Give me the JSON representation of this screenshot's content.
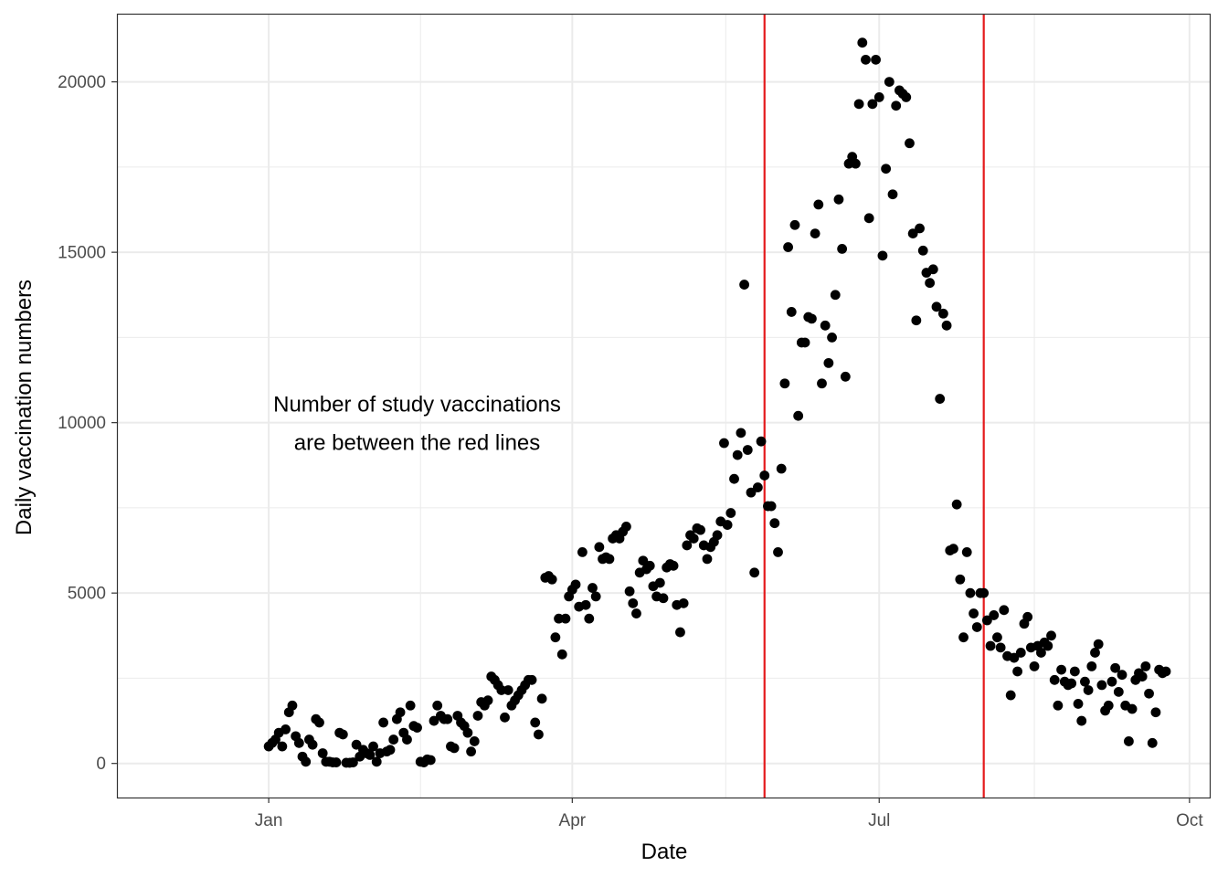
{
  "chart_data": {
    "type": "scatter",
    "xlabel": "Date",
    "ylabel": "Daily vaccination numbers",
    "x_ticks": [
      {
        "date": "2021-01-01",
        "label": "Jan"
      },
      {
        "date": "2021-04-01",
        "label": "Apr"
      },
      {
        "date": "2021-07-01",
        "label": "Jul"
      },
      {
        "date": "2021-10-01",
        "label": "Oct"
      }
    ],
    "y_ticks": [
      0,
      5000,
      10000,
      15000,
      20000
    ],
    "xlim": [
      "2020-11-17",
      "2021-10-07"
    ],
    "ylim": [
      -1000,
      22000
    ],
    "grid": true,
    "marker_color": "#000000",
    "vlines": [
      {
        "date": "2021-05-28",
        "color": "#e41a1c"
      },
      {
        "date": "2021-08-01",
        "color": "#e41a1c"
      }
    ],
    "annotation": {
      "lines": [
        "Number of study vaccinations",
        "are between the red lines"
      ],
      "date": "2021-02-14",
      "y": 10000
    },
    "points": [
      [
        "2021-01-01",
        500
      ],
      [
        "2021-01-02",
        600
      ],
      [
        "2021-01-03",
        700
      ],
      [
        "2021-01-04",
        900
      ],
      [
        "2021-01-05",
        500
      ],
      [
        "2021-01-06",
        1000
      ],
      [
        "2021-01-07",
        1500
      ],
      [
        "2021-01-08",
        1700
      ],
      [
        "2021-01-09",
        800
      ],
      [
        "2021-01-10",
        600
      ],
      [
        "2021-01-11",
        200
      ],
      [
        "2021-01-12",
        50
      ],
      [
        "2021-01-13",
        700
      ],
      [
        "2021-01-14",
        550
      ],
      [
        "2021-01-15",
        1300
      ],
      [
        "2021-01-16",
        1200
      ],
      [
        "2021-01-17",
        300
      ],
      [
        "2021-01-18",
        50
      ],
      [
        "2021-01-19",
        50
      ],
      [
        "2021-01-20",
        30
      ],
      [
        "2021-01-21",
        30
      ],
      [
        "2021-01-22",
        900
      ],
      [
        "2021-01-23",
        850
      ],
      [
        "2021-01-24",
        20
      ],
      [
        "2021-01-25",
        20
      ],
      [
        "2021-01-26",
        30
      ],
      [
        "2021-01-27",
        550
      ],
      [
        "2021-01-28",
        200
      ],
      [
        "2021-01-29",
        400
      ],
      [
        "2021-01-30",
        300
      ],
      [
        "2021-01-31",
        250
      ],
      [
        "2021-02-01",
        500
      ],
      [
        "2021-02-02",
        50
      ],
      [
        "2021-02-03",
        300
      ],
      [
        "2021-02-04",
        1200
      ],
      [
        "2021-02-05",
        350
      ],
      [
        "2021-02-06",
        400
      ],
      [
        "2021-02-07",
        700
      ],
      [
        "2021-02-08",
        1300
      ],
      [
        "2021-02-09",
        1500
      ],
      [
        "2021-02-10",
        900
      ],
      [
        "2021-02-11",
        700
      ],
      [
        "2021-02-12",
        1700
      ],
      [
        "2021-02-13",
        1100
      ],
      [
        "2021-02-14",
        1050
      ],
      [
        "2021-02-15",
        50
      ],
      [
        "2021-02-16",
        30
      ],
      [
        "2021-02-17",
        120
      ],
      [
        "2021-02-18",
        100
      ],
      [
        "2021-02-19",
        1250
      ],
      [
        "2021-02-20",
        1700
      ],
      [
        "2021-02-21",
        1400
      ],
      [
        "2021-02-22",
        1300
      ],
      [
        "2021-02-23",
        1300
      ],
      [
        "2021-02-24",
        500
      ],
      [
        "2021-02-25",
        450
      ],
      [
        "2021-02-26",
        1400
      ],
      [
        "2021-02-27",
        1200
      ],
      [
        "2021-02-28",
        1100
      ],
      [
        "2021-03-01",
        900
      ],
      [
        "2021-03-02",
        350
      ],
      [
        "2021-03-03",
        650
      ],
      [
        "2021-03-04",
        1400
      ],
      [
        "2021-03-05",
        1800
      ],
      [
        "2021-03-06",
        1700
      ],
      [
        "2021-03-07",
        1850
      ],
      [
        "2021-03-08",
        2550
      ],
      [
        "2021-03-09",
        2450
      ],
      [
        "2021-03-10",
        2300
      ],
      [
        "2021-03-11",
        2150
      ],
      [
        "2021-03-12",
        1350
      ],
      [
        "2021-03-13",
        2150
      ],
      [
        "2021-03-14",
        1700
      ],
      [
        "2021-03-15",
        1850
      ],
      [
        "2021-03-16",
        2000
      ],
      [
        "2021-03-17",
        2150
      ],
      [
        "2021-03-18",
        2300
      ],
      [
        "2021-03-19",
        2450
      ],
      [
        "2021-03-20",
        2450
      ],
      [
        "2021-03-21",
        1200
      ],
      [
        "2021-03-22",
        850
      ],
      [
        "2021-03-23",
        1900
      ],
      [
        "2021-03-24",
        5450
      ],
      [
        "2021-03-25",
        5500
      ],
      [
        "2021-03-26",
        5400
      ],
      [
        "2021-03-27",
        3700
      ],
      [
        "2021-03-28",
        4250
      ],
      [
        "2021-03-29",
        3200
      ],
      [
        "2021-03-30",
        4250
      ],
      [
        "2021-03-31",
        4900
      ],
      [
        "2021-04-01",
        5100
      ],
      [
        "2021-04-02",
        5250
      ],
      [
        "2021-04-03",
        4600
      ],
      [
        "2021-04-04",
        6200
      ],
      [
        "2021-04-05",
        4650
      ],
      [
        "2021-04-06",
        4250
      ],
      [
        "2021-04-07",
        5150
      ],
      [
        "2021-04-08",
        4900
      ],
      [
        "2021-04-09",
        6350
      ],
      [
        "2021-04-10",
        6000
      ],
      [
        "2021-04-11",
        6050
      ],
      [
        "2021-04-12",
        6000
      ],
      [
        "2021-04-13",
        6600
      ],
      [
        "2021-04-14",
        6700
      ],
      [
        "2021-04-15",
        6600
      ],
      [
        "2021-04-16",
        6800
      ],
      [
        "2021-04-17",
        6950
      ],
      [
        "2021-04-18",
        5050
      ],
      [
        "2021-04-19",
        4700
      ],
      [
        "2021-04-20",
        4400
      ],
      [
        "2021-04-21",
        5600
      ],
      [
        "2021-04-22",
        5950
      ],
      [
        "2021-04-23",
        5700
      ],
      [
        "2021-04-24",
        5800
      ],
      [
        "2021-04-25",
        5200
      ],
      [
        "2021-04-26",
        4900
      ],
      [
        "2021-04-27",
        5300
      ],
      [
        "2021-04-28",
        4850
      ],
      [
        "2021-04-29",
        5750
      ],
      [
        "2021-04-30",
        5850
      ],
      [
        "2021-05-01",
        5800
      ],
      [
        "2021-05-02",
        4650
      ],
      [
        "2021-05-03",
        3850
      ],
      [
        "2021-05-04",
        4700
      ],
      [
        "2021-05-05",
        6400
      ],
      [
        "2021-05-06",
        6700
      ],
      [
        "2021-05-07",
        6600
      ],
      [
        "2021-05-08",
        6900
      ],
      [
        "2021-05-09",
        6850
      ],
      [
        "2021-05-10",
        6400
      ],
      [
        "2021-05-11",
        6000
      ],
      [
        "2021-05-12",
        6350
      ],
      [
        "2021-05-13",
        6500
      ],
      [
        "2021-05-14",
        6700
      ],
      [
        "2021-05-15",
        7100
      ],
      [
        "2021-05-16",
        9400
      ],
      [
        "2021-05-17",
        7000
      ],
      [
        "2021-05-18",
        7350
      ],
      [
        "2021-05-19",
        8350
      ],
      [
        "2021-05-20",
        9050
      ],
      [
        "2021-05-21",
        9700
      ],
      [
        "2021-05-22",
        14050
      ],
      [
        "2021-05-23",
        9200
      ],
      [
        "2021-05-24",
        7950
      ],
      [
        "2021-05-25",
        5600
      ],
      [
        "2021-05-26",
        8100
      ],
      [
        "2021-05-27",
        9450
      ],
      [
        "2021-05-28",
        8450
      ],
      [
        "2021-05-29",
        7550
      ],
      [
        "2021-05-30",
        7550
      ],
      [
        "2021-05-31",
        7050
      ],
      [
        "2021-06-01",
        6200
      ],
      [
        "2021-06-02",
        8650
      ],
      [
        "2021-06-03",
        11150
      ],
      [
        "2021-06-04",
        15150
      ],
      [
        "2021-06-05",
        13250
      ],
      [
        "2021-06-06",
        15800
      ],
      [
        "2021-06-07",
        10200
      ],
      [
        "2021-06-08",
        12350
      ],
      [
        "2021-06-09",
        12350
      ],
      [
        "2021-06-10",
        13100
      ],
      [
        "2021-06-11",
        13050
      ],
      [
        "2021-06-12",
        15550
      ],
      [
        "2021-06-13",
        16400
      ],
      [
        "2021-06-14",
        11150
      ],
      [
        "2021-06-15",
        12850
      ],
      [
        "2021-06-16",
        11750
      ],
      [
        "2021-06-17",
        12500
      ],
      [
        "2021-06-18",
        13750
      ],
      [
        "2021-06-19",
        16550
      ],
      [
        "2021-06-20",
        15100
      ],
      [
        "2021-06-21",
        11350
      ],
      [
        "2021-06-22",
        17600
      ],
      [
        "2021-06-23",
        17800
      ],
      [
        "2021-06-24",
        17600
      ],
      [
        "2021-06-25",
        19350
      ],
      [
        "2021-06-26",
        21150
      ],
      [
        "2021-06-27",
        20650
      ],
      [
        "2021-06-28",
        16000
      ],
      [
        "2021-06-29",
        19350
      ],
      [
        "2021-06-30",
        20650
      ],
      [
        "2021-07-01",
        19550
      ],
      [
        "2021-07-02",
        14900
      ],
      [
        "2021-07-03",
        17450
      ],
      [
        "2021-07-04",
        20000
      ],
      [
        "2021-07-05",
        16700
      ],
      [
        "2021-07-06",
        19300
      ],
      [
        "2021-07-07",
        19750
      ],
      [
        "2021-07-08",
        19650
      ],
      [
        "2021-07-09",
        19550
      ],
      [
        "2021-07-10",
        18200
      ],
      [
        "2021-07-11",
        15550
      ],
      [
        "2021-07-12",
        13000
      ],
      [
        "2021-07-13",
        15700
      ],
      [
        "2021-07-14",
        15050
      ],
      [
        "2021-07-15",
        14400
      ],
      [
        "2021-07-16",
        14100
      ],
      [
        "2021-07-17",
        14500
      ],
      [
        "2021-07-18",
        13400
      ],
      [
        "2021-07-19",
        10700
      ],
      [
        "2021-07-20",
        13200
      ],
      [
        "2021-07-21",
        12850
      ],
      [
        "2021-07-22",
        6250
      ],
      [
        "2021-07-23",
        6300
      ],
      [
        "2021-07-24",
        7600
      ],
      [
        "2021-07-25",
        5400
      ],
      [
        "2021-07-26",
        3700
      ],
      [
        "2021-07-27",
        6200
      ],
      [
        "2021-07-28",
        5000
      ],
      [
        "2021-07-29",
        4400
      ],
      [
        "2021-07-30",
        4000
      ],
      [
        "2021-07-31",
        5000
      ],
      [
        "2021-08-01",
        5000
      ],
      [
        "2021-08-02",
        4200
      ],
      [
        "2021-08-03",
        3450
      ],
      [
        "2021-08-04",
        4350
      ],
      [
        "2021-08-05",
        3700
      ],
      [
        "2021-08-06",
        3400
      ],
      [
        "2021-08-07",
        4500
      ],
      [
        "2021-08-08",
        3150
      ],
      [
        "2021-08-09",
        2000
      ],
      [
        "2021-08-10",
        3100
      ],
      [
        "2021-08-11",
        2700
      ],
      [
        "2021-08-12",
        3250
      ],
      [
        "2021-08-13",
        4100
      ],
      [
        "2021-08-14",
        4300
      ],
      [
        "2021-08-15",
        3400
      ],
      [
        "2021-08-16",
        2850
      ],
      [
        "2021-08-17",
        3450
      ],
      [
        "2021-08-18",
        3250
      ],
      [
        "2021-08-19",
        3550
      ],
      [
        "2021-08-20",
        3450
      ],
      [
        "2021-08-21",
        3750
      ],
      [
        "2021-08-22",
        2450
      ],
      [
        "2021-08-23",
        1700
      ],
      [
        "2021-08-24",
        2750
      ],
      [
        "2021-08-25",
        2400
      ],
      [
        "2021-08-26",
        2300
      ],
      [
        "2021-08-27",
        2350
      ],
      [
        "2021-08-28",
        2700
      ],
      [
        "2021-08-29",
        1750
      ],
      [
        "2021-08-30",
        1250
      ],
      [
        "2021-08-31",
        2400
      ],
      [
        "2021-09-01",
        2150
      ],
      [
        "2021-09-02",
        2850
      ],
      [
        "2021-09-03",
        3250
      ],
      [
        "2021-09-04",
        3500
      ],
      [
        "2021-09-05",
        2300
      ],
      [
        "2021-09-06",
        1550
      ],
      [
        "2021-09-07",
        1700
      ],
      [
        "2021-09-08",
        2400
      ],
      [
        "2021-09-09",
        2800
      ],
      [
        "2021-09-10",
        2100
      ],
      [
        "2021-09-11",
        2600
      ],
      [
        "2021-09-12",
        1700
      ],
      [
        "2021-09-13",
        650
      ],
      [
        "2021-09-14",
        1600
      ],
      [
        "2021-09-15",
        2450
      ],
      [
        "2021-09-16",
        2650
      ],
      [
        "2021-09-17",
        2550
      ],
      [
        "2021-09-18",
        2850
      ],
      [
        "2021-09-19",
        2050
      ],
      [
        "2021-09-20",
        600
      ],
      [
        "2021-09-21",
        1500
      ],
      [
        "2021-09-22",
        2750
      ],
      [
        "2021-09-23",
        2650
      ],
      [
        "2021-09-24",
        2700
      ]
    ]
  }
}
